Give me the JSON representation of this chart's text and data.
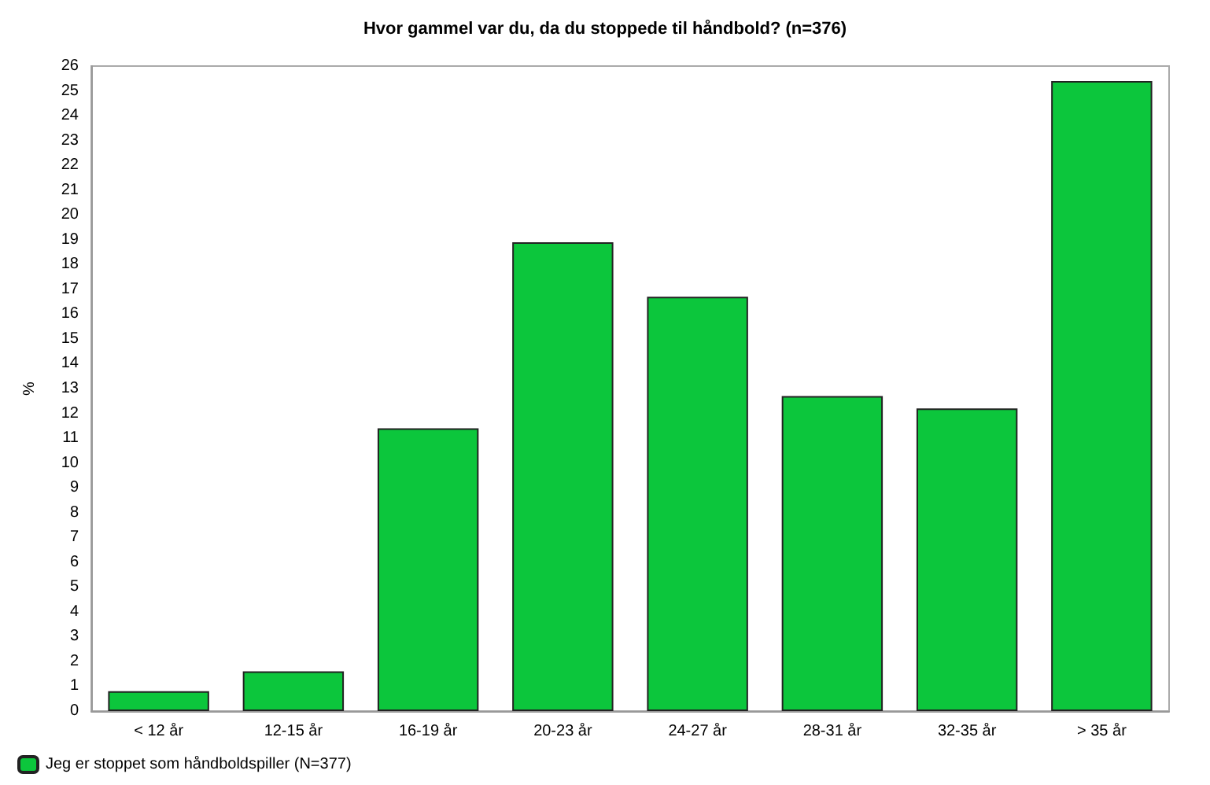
{
  "chart_data": {
    "type": "bar",
    "title": "Hvor gammel var du, da du stoppede til håndbold? (n=376)",
    "ylabel": "%",
    "categories": [
      "< 12 år",
      "12-15 år",
      "16-19 år",
      "20-23 år",
      "24-27 år",
      "28-31 år",
      "32-35 år",
      "> 35 år"
    ],
    "series": [
      {
        "name": "Jeg er stoppet som håndboldspiller (N=377)",
        "color": "#0cc63c",
        "values": [
          0.8,
          1.6,
          11.4,
          18.9,
          16.7,
          12.7,
          12.2,
          25.4
        ]
      }
    ],
    "ylim": [
      0,
      26
    ],
    "yticks": [
      0,
      1,
      2,
      3,
      4,
      5,
      6,
      7,
      8,
      9,
      10,
      11,
      12,
      13,
      14,
      15,
      16,
      17,
      18,
      19,
      20,
      21,
      22,
      23,
      24,
      25,
      26
    ],
    "grid": false,
    "legend": "bottom left"
  }
}
